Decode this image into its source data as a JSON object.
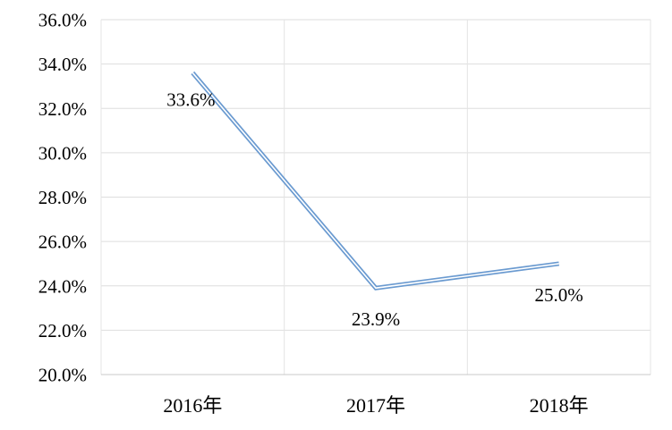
{
  "chart_data": {
    "type": "line",
    "title": "",
    "xlabel": "",
    "ylabel": "",
    "categories": [
      "2016年",
      "2017年",
      "2018年"
    ],
    "values": [
      33.6,
      23.9,
      25.0
    ],
    "data_labels": [
      "33.6%",
      "23.9%",
      "25.0%"
    ],
    "y_ticks": [
      {
        "value": 36,
        "label": "36.0%"
      },
      {
        "value": 34,
        "label": "34.0%"
      },
      {
        "value": 32,
        "label": "32.0%"
      },
      {
        "value": 30,
        "label": "30.0%"
      },
      {
        "value": 28,
        "label": "28.0%"
      },
      {
        "value": 26,
        "label": "26.0%"
      },
      {
        "value": 24,
        "label": "24.0%"
      },
      {
        "value": 22,
        "label": "22.0%"
      },
      {
        "value": 20,
        "label": "20.0%"
      }
    ],
    "ylim": [
      20,
      36
    ],
    "y_step": 2,
    "grid": true,
    "legend_position": "none",
    "line_style": "double",
    "colors": {
      "line": "#6a9ad0",
      "line_center": "#ffffff",
      "gridline": "#dedede",
      "vertical_gridline": "#e4e4e4",
      "axis_line": "#c8c8c8",
      "text": "#000000",
      "background": "#ffffff"
    }
  }
}
